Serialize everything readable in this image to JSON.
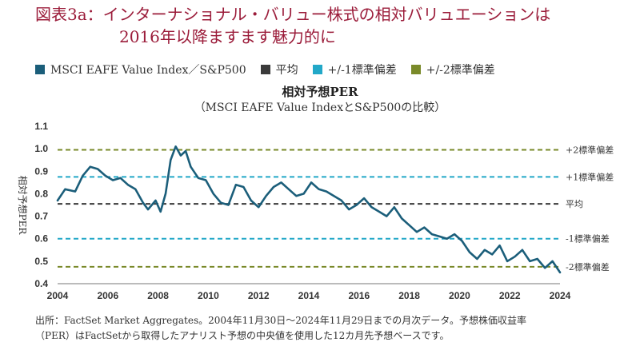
{
  "header": {
    "title_line1": "図表3a：インターナショナル・バリュー株式の相対バリュエーションは",
    "title_line2": "2016年以降ますます魅力的に"
  },
  "legend": [
    {
      "label": "MSCI EAFE Value Index／S&P500",
      "color": "#1b5e7a"
    },
    {
      "label": "平均",
      "color": "#3a3a3a"
    },
    {
      "label": "+/-1標準偏差",
      "color": "#22a8c8"
    },
    {
      "label": "+/-2標準偏差",
      "color": "#7a8a2a"
    }
  ],
  "chart_data": {
    "type": "line",
    "title": "相対予想PER",
    "subtitle": "（MSCI EAFE Value IndexとS&P500の比較）",
    "ylabel": "相対予想PER",
    "xlabel": "",
    "xlim": [
      2004,
      2024
    ],
    "ylim": [
      0.4,
      1.1
    ],
    "yticks": [
      "0.4",
      "0.5",
      "0.6",
      "0.7",
      "0.8",
      "0.9",
      "1.0",
      "1.1"
    ],
    "xticks": [
      "2004",
      "2006",
      "2008",
      "2010",
      "2012",
      "2014",
      "2016",
      "2018",
      "2020",
      "2022",
      "2024"
    ],
    "series": [
      {
        "name": "MSCI EAFE Value Index／S&P500",
        "color": "#1b5e7a",
        "x": [
          2004.0,
          2004.3,
          2004.7,
          2005.0,
          2005.3,
          2005.6,
          2005.9,
          2006.2,
          2006.5,
          2006.8,
          2007.1,
          2007.4,
          2007.6,
          2007.9,
          2008.1,
          2008.3,
          2008.5,
          2008.7,
          2008.9,
          2009.1,
          2009.3,
          2009.6,
          2009.9,
          2010.2,
          2010.5,
          2010.8,
          2011.1,
          2011.4,
          2011.7,
          2012.0,
          2012.3,
          2012.6,
          2012.9,
          2013.2,
          2013.5,
          2013.8,
          2014.1,
          2014.4,
          2014.7,
          2015.0,
          2015.3,
          2015.6,
          2015.9,
          2016.2,
          2016.5,
          2016.8,
          2017.1,
          2017.4,
          2017.7,
          2018.0,
          2018.3,
          2018.6,
          2018.9,
          2019.2,
          2019.5,
          2019.8,
          2020.1,
          2020.4,
          2020.7,
          2021.0,
          2021.3,
          2021.6,
          2021.9,
          2022.2,
          2022.5,
          2022.8,
          2023.1,
          2023.4,
          2023.7,
          2024.0
        ],
        "values": [
          0.77,
          0.82,
          0.81,
          0.88,
          0.92,
          0.91,
          0.88,
          0.86,
          0.87,
          0.84,
          0.82,
          0.76,
          0.73,
          0.77,
          0.72,
          0.8,
          0.95,
          1.01,
          0.97,
          0.99,
          0.92,
          0.87,
          0.86,
          0.8,
          0.76,
          0.75,
          0.84,
          0.83,
          0.77,
          0.74,
          0.79,
          0.83,
          0.85,
          0.82,
          0.79,
          0.8,
          0.85,
          0.82,
          0.81,
          0.79,
          0.77,
          0.73,
          0.75,
          0.78,
          0.74,
          0.72,
          0.7,
          0.74,
          0.69,
          0.66,
          0.63,
          0.65,
          0.62,
          0.61,
          0.6,
          0.62,
          0.59,
          0.54,
          0.51,
          0.55,
          0.53,
          0.57,
          0.5,
          0.52,
          0.55,
          0.5,
          0.51,
          0.47,
          0.5,
          0.45
        ]
      }
    ],
    "reference_lines": [
      {
        "label": "+2標準偏差",
        "value": 0.995,
        "color": "#7a8a2a"
      },
      {
        "label": "+1標準偏差",
        "value": 0.875,
        "color": "#22a8c8"
      },
      {
        "label": "平均",
        "value": 0.755,
        "color": "#3a3a3a"
      },
      {
        "label": "-1標準偏差",
        "value": 0.6,
        "color": "#22a8c8"
      },
      {
        "label": "-2標準偏差",
        "value": 0.475,
        "color": "#7a8a2a"
      }
    ]
  },
  "footer": {
    "line1": "出所：FactSet Market Aggregates。2004年11月30日～2024年11月29日までの月次データ。予想株価収益率",
    "line2": "（PER）はFactSetから取得したアナリスト予想の中央値を使用した12カ月先予想ベースです。"
  }
}
